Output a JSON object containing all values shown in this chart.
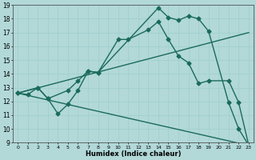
{
  "xlabel": "Humidex (Indice chaleur)",
  "background_color": "#b2d8d8",
  "line_color": "#1a6b5a",
  "xlim": [
    -0.5,
    23.5
  ],
  "ylim": [
    9,
    19
  ],
  "xticks": [
    0,
    1,
    2,
    3,
    4,
    5,
    6,
    7,
    8,
    9,
    10,
    11,
    12,
    13,
    14,
    15,
    16,
    17,
    18,
    19,
    20,
    21,
    22,
    23
  ],
  "yticks": [
    9,
    10,
    11,
    12,
    13,
    14,
    15,
    16,
    17,
    18,
    19
  ],
  "series": [
    {
      "x": [
        0,
        1,
        2,
        3,
        4,
        5,
        6,
        7,
        8,
        14,
        15,
        16,
        17,
        18,
        19,
        21,
        22,
        23
      ],
      "y": [
        12.6,
        12.5,
        13.0,
        12.2,
        11.1,
        11.8,
        12.8,
        14.2,
        14.1,
        18.8,
        18.1,
        17.9,
        18.2,
        18.0,
        17.1,
        11.9,
        10.0,
        8.8
      ],
      "marker": "D",
      "markersize": 2.5,
      "linewidth": 1.0,
      "has_marker": true
    },
    {
      "x": [
        0,
        2,
        3,
        5,
        6,
        7,
        8,
        10,
        11,
        13,
        14,
        15,
        16,
        17,
        18,
        19,
        21,
        22,
        23
      ],
      "y": [
        12.6,
        13.0,
        12.2,
        12.8,
        13.5,
        14.2,
        14.1,
        16.5,
        16.5,
        17.2,
        17.8,
        16.5,
        15.3,
        14.8,
        13.3,
        13.5,
        13.5,
        11.9,
        8.8
      ],
      "marker": "D",
      "markersize": 2.5,
      "linewidth": 1.0,
      "has_marker": true
    },
    {
      "x": [
        0,
        23
      ],
      "y": [
        12.6,
        17.0
      ],
      "marker": null,
      "markersize": 0,
      "linewidth": 1.0,
      "has_marker": false
    },
    {
      "x": [
        0,
        23
      ],
      "y": [
        12.6,
        8.8
      ],
      "marker": null,
      "markersize": 0,
      "linewidth": 1.0,
      "has_marker": false
    }
  ]
}
